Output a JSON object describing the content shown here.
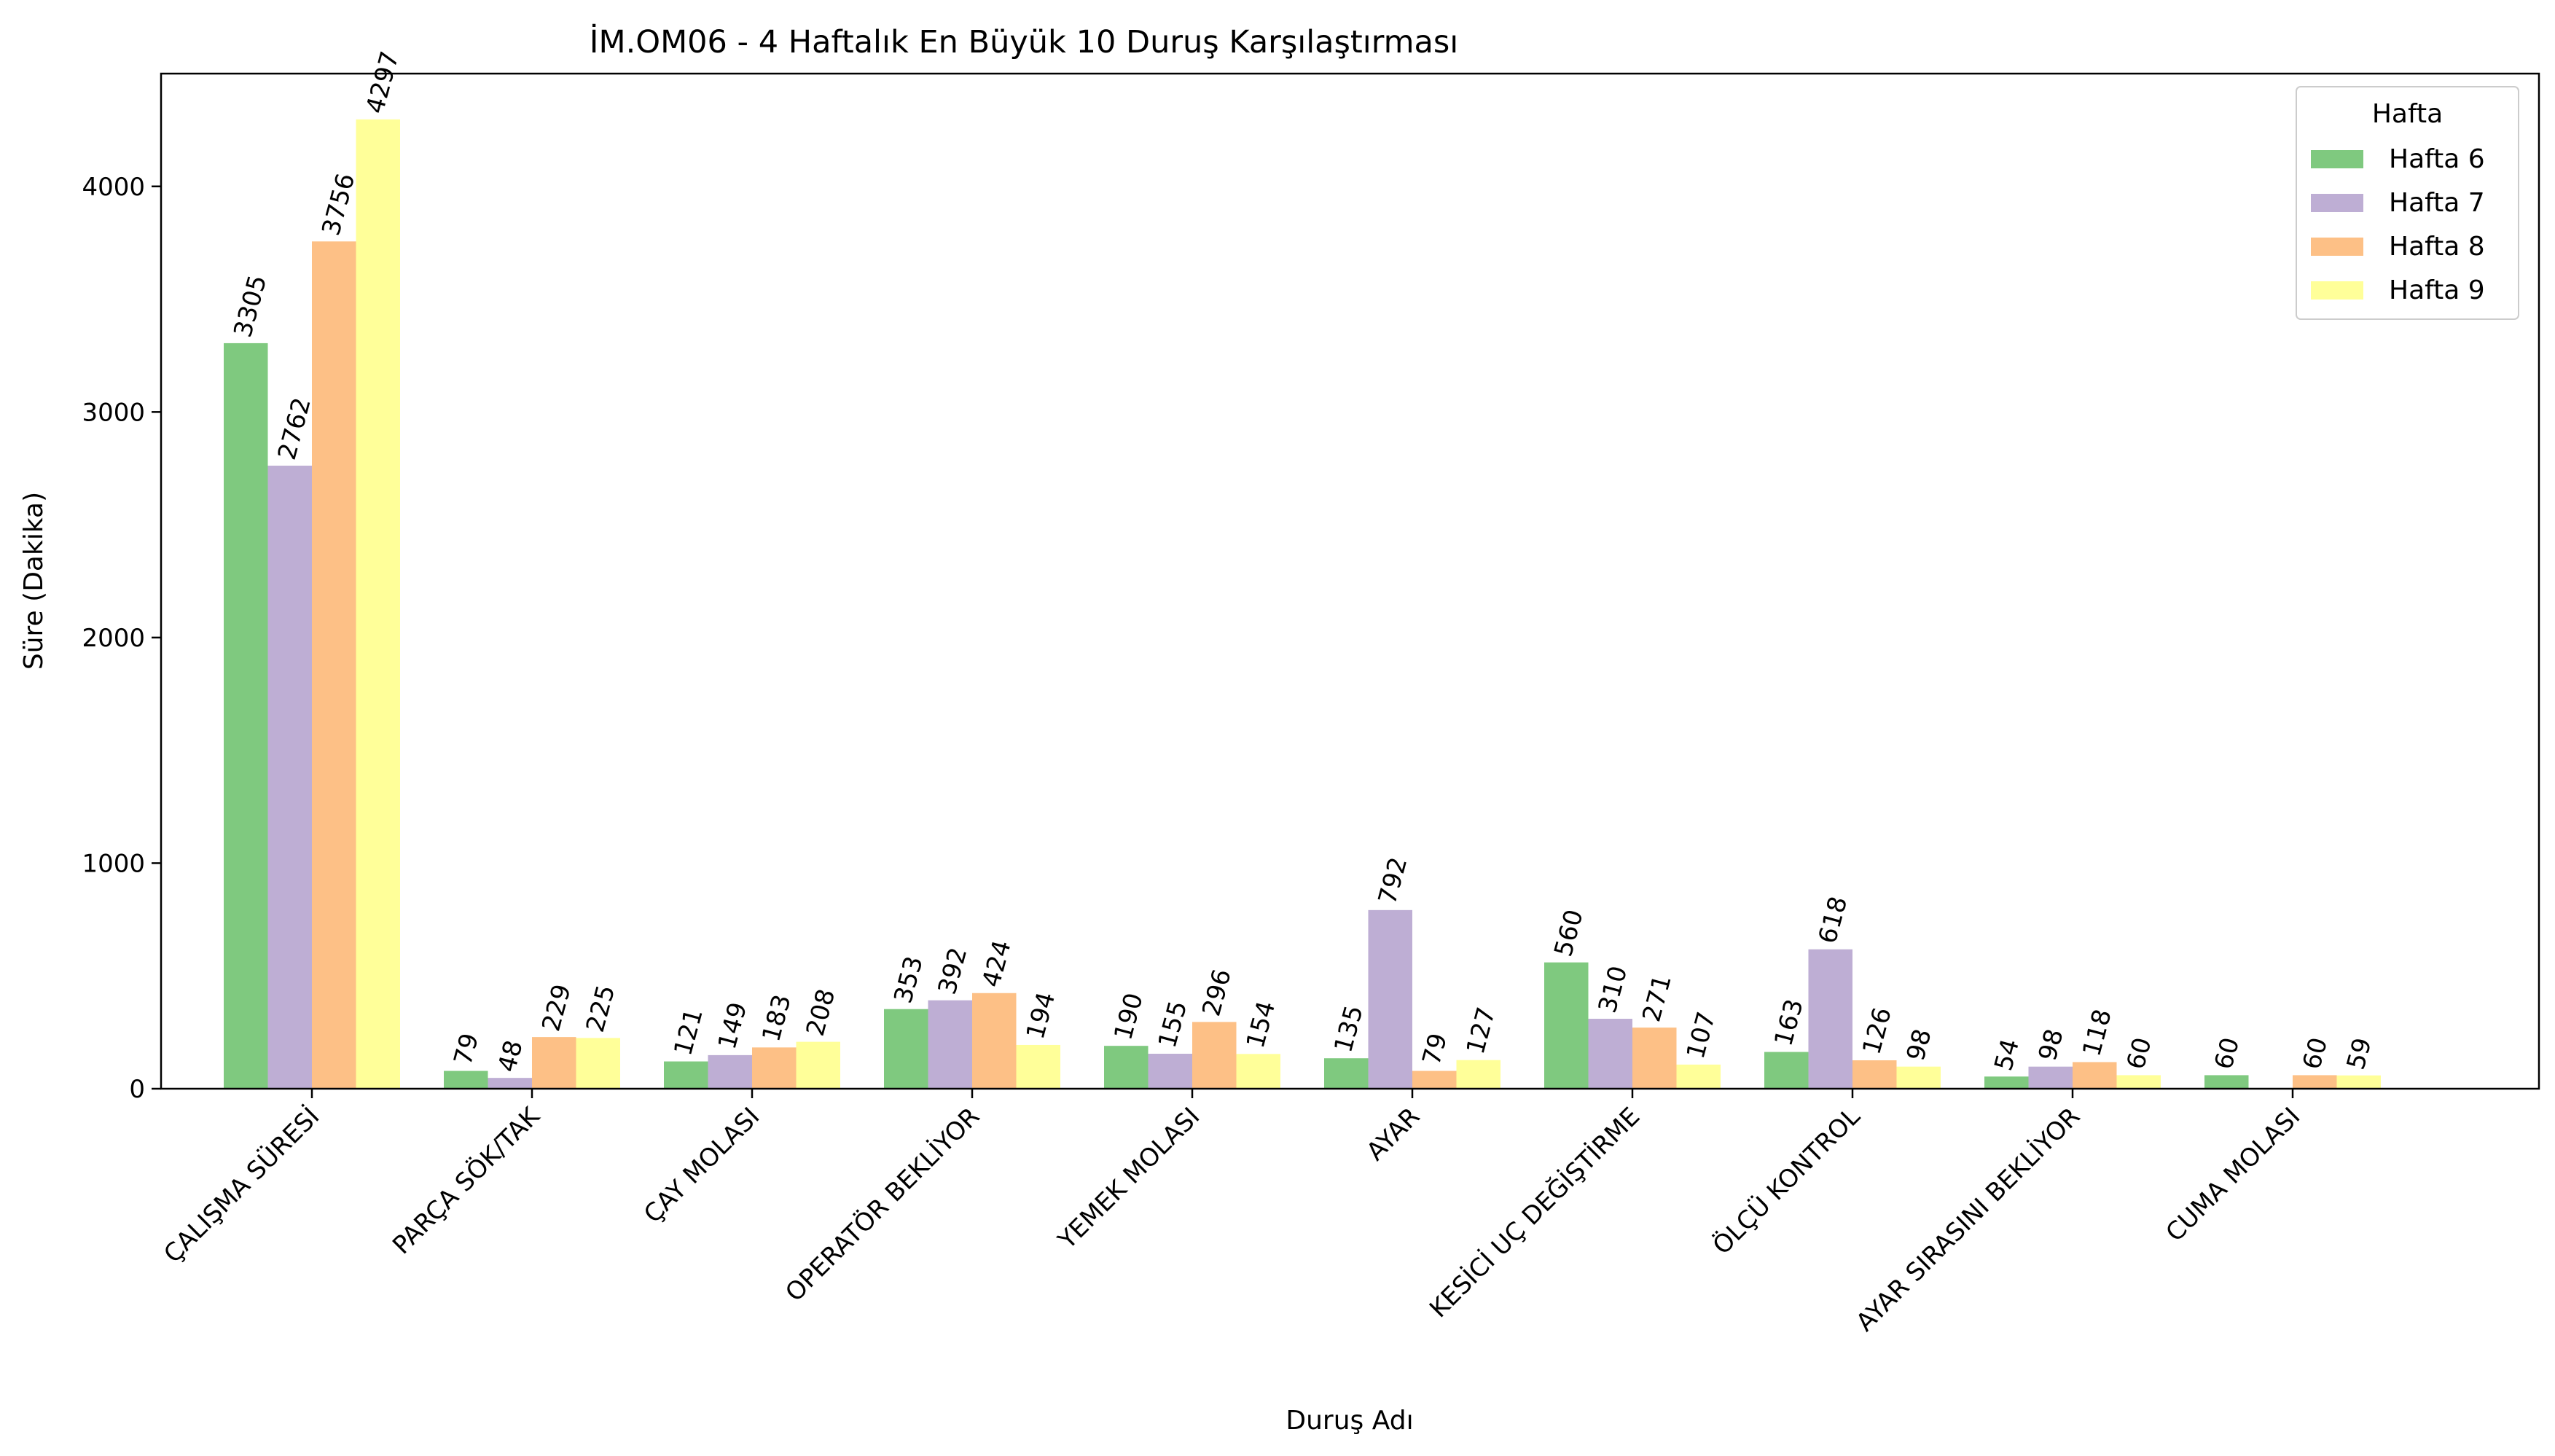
{
  "chart_data": {
    "type": "bar",
    "title": "İM.OM06 - 4 Haftalık En Büyük 10 Duruş Karşılaştırması",
    "xlabel": "Duruş Adı",
    "ylabel": "Süre (Dakika)",
    "ylim": [
      0,
      4500
    ],
    "yticks": [
      0,
      1000,
      2000,
      3000,
      4000
    ],
    "grid": false,
    "legend": {
      "title": "Hafta",
      "position": "top-right"
    },
    "categories": [
      "ÇALIŞMA SÜRESİ",
      "PARÇA SÖK/TAK",
      "ÇAY MOLASI",
      "OPERATÖR BEKLİYOR",
      "YEMEK MOLASI",
      "AYAR",
      "KESİCİ UÇ DEĞİŞTİRME",
      "ÖLÇÜ KONTROL",
      "AYAR SIRASINI BEKLİYOR",
      "CUMA  MOLASI"
    ],
    "series": [
      {
        "name": "Hafta 6",
        "color": "#7fc97f",
        "values": [
          3305,
          79,
          121,
          353,
          190,
          135,
          560,
          163,
          54,
          60
        ]
      },
      {
        "name": "Hafta 7",
        "color": "#beaed4",
        "values": [
          2762,
          48,
          149,
          392,
          155,
          792,
          310,
          618,
          98,
          null
        ]
      },
      {
        "name": "Hafta 8",
        "color": "#fdc086",
        "values": [
          3756,
          229,
          183,
          424,
          296,
          79,
          271,
          126,
          118,
          60
        ]
      },
      {
        "name": "Hafta 9",
        "color": "#ffff99",
        "values": [
          4297,
          225,
          208,
          194,
          154,
          127,
          107,
          98,
          60,
          59
        ]
      }
    ]
  }
}
